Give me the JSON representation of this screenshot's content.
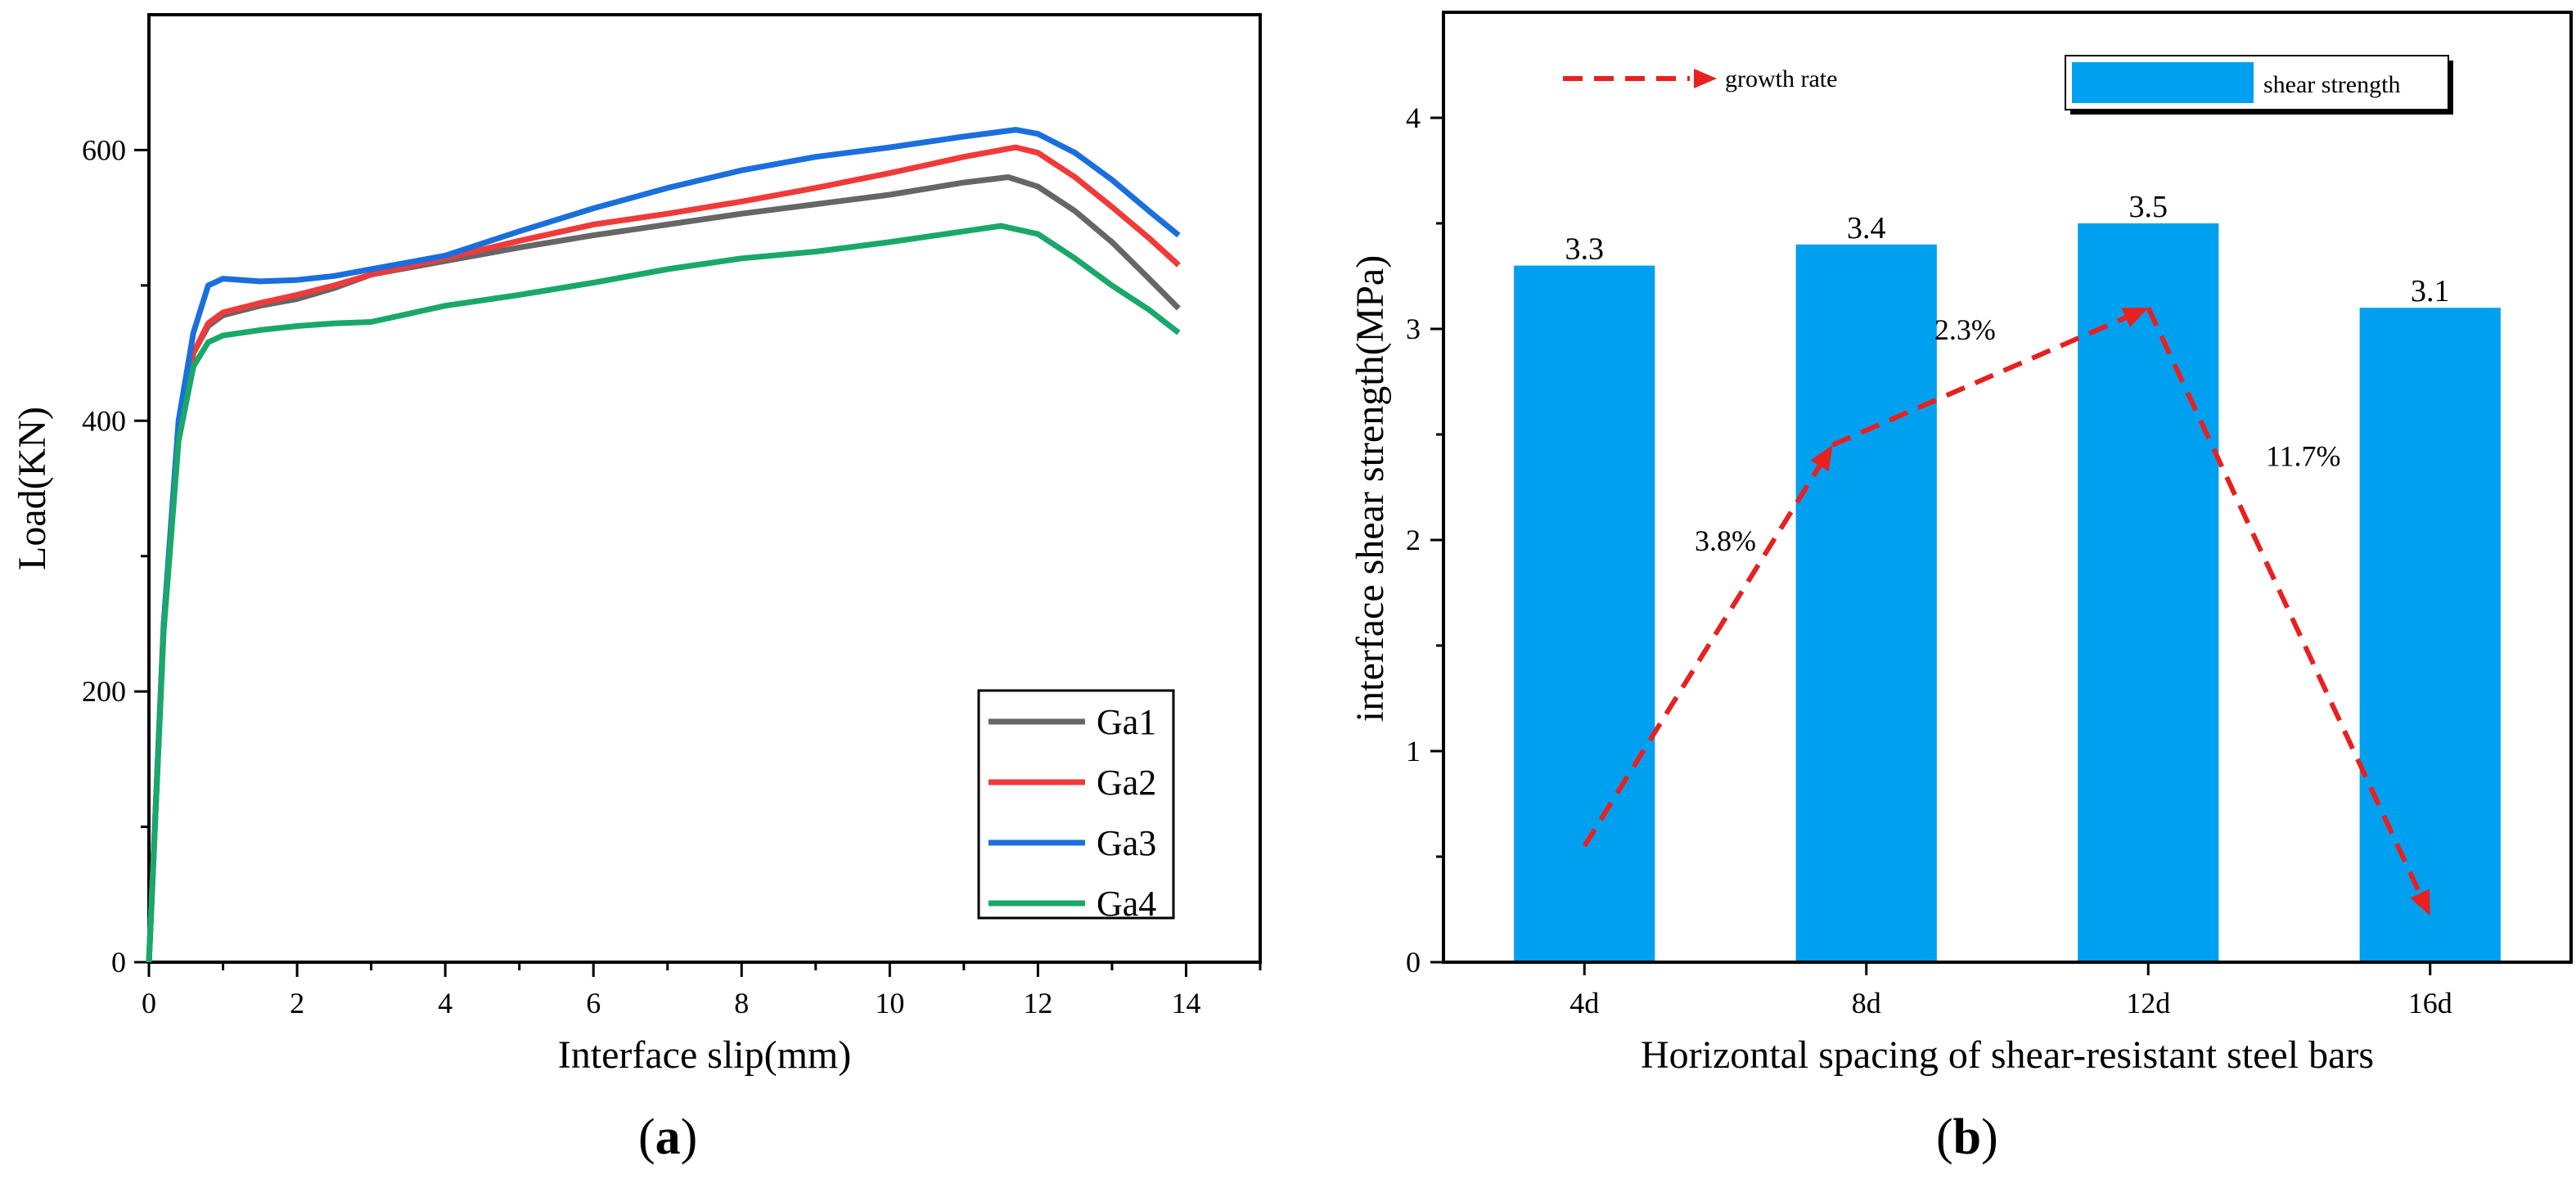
{
  "chart_data": [
    {
      "type": "line",
      "panel": "(a)",
      "panel_letter": "a",
      "xlabel": "Interface slip(mm)",
      "ylabel": "Load(KN)",
      "xlim": [
        0,
        15
      ],
      "ylim": [
        0,
        700
      ],
      "xticks": [
        0,
        2,
        4,
        6,
        8,
        10,
        12,
        14
      ],
      "yticks": [
        0,
        200,
        400,
        600
      ],
      "legend_position": "bottom-right",
      "series": [
        {
          "name": "Ga1",
          "color": "#666666",
          "points": [
            [
              0,
              0
            ],
            [
              0.2,
              250
            ],
            [
              0.4,
              390
            ],
            [
              0.6,
              450
            ],
            [
              0.8,
              470
            ],
            [
              1.0,
              478
            ],
            [
              1.5,
              485
            ],
            [
              2.0,
              490
            ],
            [
              2.5,
              498
            ],
            [
              3.0,
              508
            ],
            [
              4.0,
              518
            ],
            [
              5.0,
              528
            ],
            [
              6.0,
              537
            ],
            [
              7.0,
              545
            ],
            [
              8.0,
              553
            ],
            [
              9.0,
              560
            ],
            [
              10.0,
              567
            ],
            [
              11.0,
              576
            ],
            [
              11.6,
              580
            ],
            [
              12.0,
              573
            ],
            [
              12.5,
              555
            ],
            [
              13.0,
              532
            ],
            [
              13.5,
              505
            ],
            [
              13.9,
              483
            ]
          ]
        },
        {
          "name": "Ga2",
          "color": "#f03a3a",
          "points": [
            [
              0,
              0
            ],
            [
              0.2,
              250
            ],
            [
              0.4,
              390
            ],
            [
              0.6,
              450
            ],
            [
              0.8,
              472
            ],
            [
              1.0,
              480
            ],
            [
              1.5,
              487
            ],
            [
              2.0,
              493
            ],
            [
              2.5,
              500
            ],
            [
              3.0,
              508
            ],
            [
              4.0,
              520
            ],
            [
              5.0,
              533
            ],
            [
              6.0,
              545
            ],
            [
              7.0,
              553
            ],
            [
              8.0,
              562
            ],
            [
              9.0,
              572
            ],
            [
              10.0,
              583
            ],
            [
              11.0,
              595
            ],
            [
              11.7,
              602
            ],
            [
              12.0,
              598
            ],
            [
              12.5,
              580
            ],
            [
              13.0,
              558
            ],
            [
              13.5,
              535
            ],
            [
              13.9,
              515
            ]
          ]
        },
        {
          "name": "Ga3",
          "color": "#1a6fdc",
          "points": [
            [
              0,
              0
            ],
            [
              0.2,
              250
            ],
            [
              0.4,
              400
            ],
            [
              0.6,
              465
            ],
            [
              0.8,
              500
            ],
            [
              1.0,
              505
            ],
            [
              1.5,
              503
            ],
            [
              2.0,
              504
            ],
            [
              2.5,
              507
            ],
            [
              3.0,
              512
            ],
            [
              4.0,
              522
            ],
            [
              5.0,
              540
            ],
            [
              6.0,
              557
            ],
            [
              7.0,
              572
            ],
            [
              8.0,
              585
            ],
            [
              9.0,
              595
            ],
            [
              10.0,
              602
            ],
            [
              11.0,
              610
            ],
            [
              11.7,
              615
            ],
            [
              12.0,
              612
            ],
            [
              12.5,
              598
            ],
            [
              13.0,
              578
            ],
            [
              13.5,
              555
            ],
            [
              13.9,
              537
            ]
          ]
        },
        {
          "name": "Ga4",
          "color": "#1aa86a",
          "points": [
            [
              0,
              0
            ],
            [
              0.2,
              245
            ],
            [
              0.4,
              385
            ],
            [
              0.6,
              440
            ],
            [
              0.8,
              458
            ],
            [
              1.0,
              463
            ],
            [
              1.5,
              467
            ],
            [
              2.0,
              470
            ],
            [
              2.5,
              472
            ],
            [
              3.0,
              473
            ],
            [
              4.0,
              485
            ],
            [
              5.0,
              493
            ],
            [
              6.0,
              502
            ],
            [
              7.0,
              512
            ],
            [
              8.0,
              520
            ],
            [
              9.0,
              525
            ],
            [
              10.0,
              532
            ],
            [
              11.0,
              540
            ],
            [
              11.5,
              544
            ],
            [
              12.0,
              538
            ],
            [
              12.5,
              520
            ],
            [
              13.0,
              500
            ],
            [
              13.5,
              482
            ],
            [
              13.9,
              465
            ]
          ]
        }
      ]
    },
    {
      "type": "bar",
      "panel": "(b)",
      "panel_letter": "b",
      "xlabel": "Horizontal spacing of shear-resistant steel bars",
      "ylabel": "interface shear strength(MPa)",
      "ylim": [
        0,
        4.5
      ],
      "yticks": [
        0,
        1,
        2,
        3,
        4
      ],
      "categories": [
        "4d",
        "8d",
        "12d",
        "16d"
      ],
      "bar_series": {
        "name": "shear strength",
        "color": "#00a0f0",
        "values": [
          3.3,
          3.4,
          3.5,
          3.1
        ],
        "labels": [
          "3.3",
          "3.4",
          "3.5",
          "3.1"
        ]
      },
      "growth_series": {
        "name": "growth rate",
        "color": "#e8201f",
        "points": [
          [
            0.0,
            0.55
          ],
          [
            0.88,
            2.45
          ],
          [
            2.0,
            3.1
          ],
          [
            3.0,
            0.22
          ]
        ],
        "annotations": [
          {
            "text": "3.8%",
            "x": 0.5,
            "y": 1.95
          },
          {
            "text": "2.3%",
            "x": 1.35,
            "y": 2.95
          },
          {
            "text": "11.7%",
            "x": 2.55,
            "y": 2.35
          }
        ]
      }
    }
  ]
}
